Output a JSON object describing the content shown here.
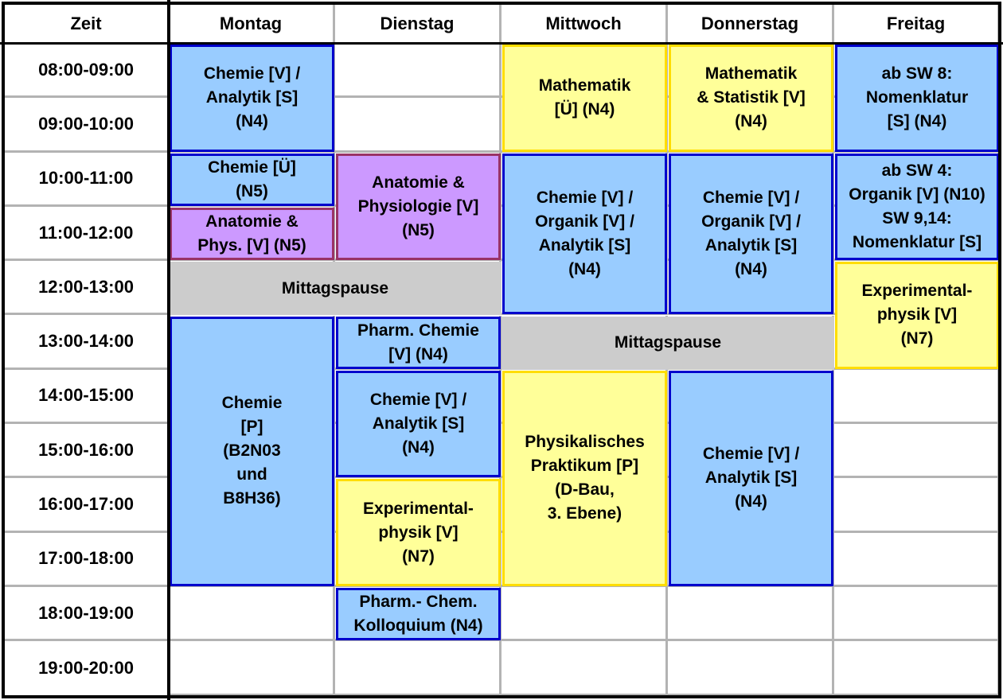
{
  "header": {
    "time_label": "Zeit",
    "days": [
      "Montag",
      "Dienstag",
      "Mittwoch",
      "Donnerstag",
      "Freitag"
    ]
  },
  "times": [
    "08:00-09:00",
    "09:00-10:00",
    "10:00-11:00",
    "11:00-12:00",
    "12:00-13:00",
    "13:00-14:00",
    "14:00-15:00",
    "15:00-16:00",
    "16:00-17:00",
    "17:00-18:00",
    "18:00-19:00",
    "19:00-20:00"
  ],
  "colors": {
    "lecture_blue": "#99ccff",
    "lecture_blue_border": "#0000cc",
    "yellow": "#ffff99",
    "yellow_border": "#ffdd00",
    "purple": "#cc99ff",
    "purple_border": "#993366",
    "pause_gray": "#cccccc"
  },
  "blocks": [
    {
      "day": "Montag",
      "start": "08:00",
      "end": "10:00",
      "color": "blue",
      "text": "Chemie [V] /\nAnalytik [S]\n(N4)"
    },
    {
      "day": "Montag",
      "start": "10:00",
      "end": "11:00",
      "color": "blue",
      "text": "Chemie [Ü]\n(N5)"
    },
    {
      "day": "Montag",
      "start": "11:00",
      "end": "12:00",
      "color": "purple",
      "text": "Anatomie &\nPhys. [V] (N5)"
    },
    {
      "day": "Montag",
      "start": "13:00",
      "end": "18:00",
      "color": "blue",
      "text": "Chemie\n[P]\n(B2N03\nund\nB8H36)"
    },
    {
      "day": "Dienstag",
      "start": "10:00",
      "end": "12:00",
      "color": "purple",
      "text": "Anatomie &\nPhysiologie [V]\n(N5)"
    },
    {
      "day": "Dienstag",
      "start": "13:00",
      "end": "14:00",
      "color": "blue",
      "text": "Pharm. Chemie\n[V] (N4)"
    },
    {
      "day": "Dienstag",
      "start": "14:00",
      "end": "16:00",
      "color": "blue",
      "text": "Chemie [V] /\nAnalytik [S]\n(N4)"
    },
    {
      "day": "Dienstag",
      "start": "16:00",
      "end": "18:00",
      "color": "yellow",
      "text": "Experimental-\nphysik [V]\n(N7)"
    },
    {
      "day": "Dienstag",
      "start": "18:00",
      "end": "19:00",
      "color": "blue",
      "text": "Pharm.- Chem.\nKolloquium (N4)"
    },
    {
      "day": "Mittwoch",
      "start": "08:00",
      "end": "10:00",
      "color": "yellow",
      "text": "Mathematik\n[Ü] (N4)"
    },
    {
      "day": "Mittwoch",
      "start": "10:00",
      "end": "13:00",
      "color": "blue",
      "text": "Chemie [V] /\nOrganik [V] /\nAnalytik [S]\n(N4)"
    },
    {
      "day": "Mittwoch",
      "start": "14:00",
      "end": "18:00",
      "color": "yellow",
      "text": "Physikalisches\nPraktikum [P]\n(D-Bau,\n3. Ebene)"
    },
    {
      "day": "Donnerstag",
      "start": "08:00",
      "end": "10:00",
      "color": "yellow",
      "text": "Mathematik\n& Statistik [V]\n(N4)"
    },
    {
      "day": "Donnerstag",
      "start": "10:00",
      "end": "13:00",
      "color": "blue",
      "text": "Chemie [V] /\nOrganik [V] /\nAnalytik [S]\n(N4)"
    },
    {
      "day": "Donnerstag",
      "start": "14:00",
      "end": "18:00",
      "color": "blue",
      "text": "Chemie [V] /\nAnalytik [S]\n(N4)"
    },
    {
      "day": "Freitag",
      "start": "08:00",
      "end": "10:00",
      "color": "blue",
      "text": "ab SW 8:\nNomenklatur\n[S] (N4)"
    },
    {
      "day": "Freitag",
      "start": "10:00",
      "end": "12:00",
      "color": "blue",
      "text": "ab SW 4:\nOrganik [V] (N10)\nSW 9,14:\nNomenklatur [S]"
    },
    {
      "day": "Freitag",
      "start": "12:00",
      "end": "14:00",
      "color": "yellow",
      "text": "Experimental-\nphysik [V]\n(N7)"
    }
  ],
  "pauses": [
    {
      "days": [
        "Montag",
        "Dienstag"
      ],
      "start": "12:00",
      "end": "13:00",
      "text": "Mittagspause"
    },
    {
      "days": [
        "Mittwoch",
        "Donnerstag"
      ],
      "start": "13:00",
      "end": "14:00",
      "text": "Mittagspause"
    }
  ]
}
